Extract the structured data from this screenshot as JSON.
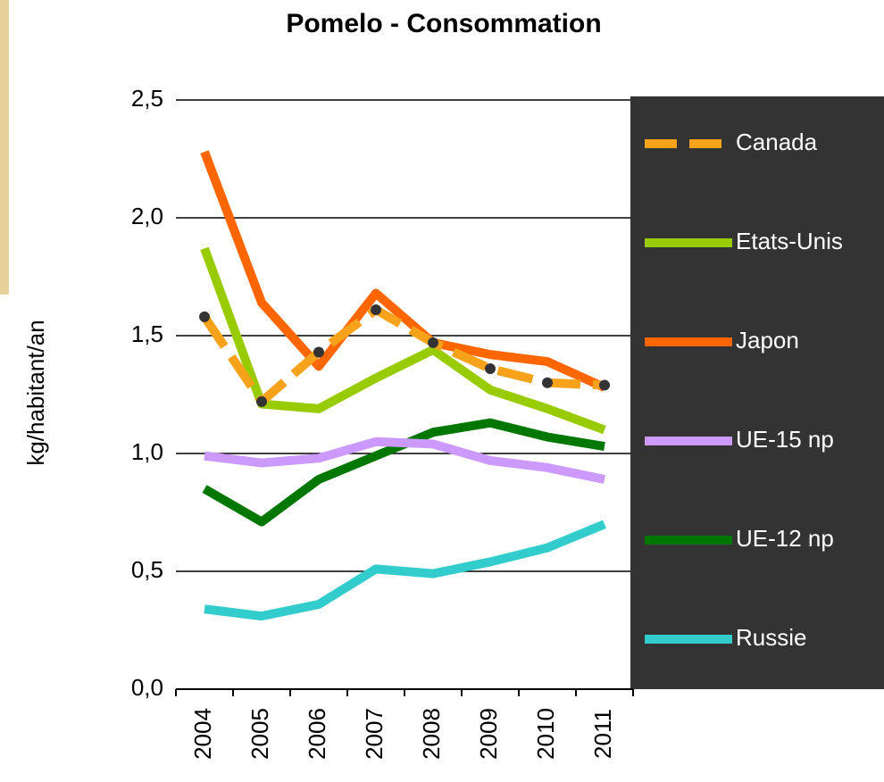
{
  "chart_data": {
    "type": "line",
    "title": "Pomelo - Consommation",
    "y_label": "kg/habitant/an",
    "categories": [
      "2004",
      "2005",
      "2006",
      "2007",
      "2008",
      "2009",
      "2010",
      "2011"
    ],
    "ylim": [
      0,
      2.5
    ],
    "yticks": [
      {
        "value": 0,
        "label": "0,0"
      },
      {
        "value": 0.5,
        "label": "0,5"
      },
      {
        "value": 1,
        "label": "1,0"
      },
      {
        "value": 1.5,
        "label": "1,5"
      },
      {
        "value": 2,
        "label": "2,0"
      },
      {
        "value": 2.5,
        "label": "2,5"
      }
    ],
    "grid": true,
    "legend": "right",
    "series": [
      {
        "name": "Canada",
        "color": "#f7a21b",
        "dashed": true,
        "markers": true,
        "values": [
          1.58,
          1.22,
          1.43,
          1.61,
          1.47,
          1.36,
          1.3,
          1.29
        ]
      },
      {
        "name": "Etats-Unis",
        "color": "#99cc00",
        "values": [
          1.87,
          1.21,
          1.19,
          1.32,
          1.44,
          1.27,
          1.19,
          1.1
        ]
      },
      {
        "name": "Japon",
        "color": "#ff6600",
        "values": [
          2.28,
          1.64,
          1.37,
          1.68,
          1.47,
          1.42,
          1.39,
          1.28
        ]
      },
      {
        "name": "UE-15 np",
        "color": "#cc99ff",
        "values": [
          0.99,
          0.96,
          0.98,
          1.05,
          1.04,
          0.97,
          0.94,
          0.89
        ]
      },
      {
        "name": "UE-12 np",
        "color": "#007700",
        "values": [
          0.85,
          0.71,
          0.89,
          0.99,
          1.09,
          1.13,
          1.07,
          1.03
        ]
      },
      {
        "name": "Russie",
        "color": "#33cccc",
        "values": [
          0.34,
          0.31,
          0.36,
          0.51,
          0.49,
          0.54,
          0.6,
          0.7
        ]
      }
    ]
  }
}
